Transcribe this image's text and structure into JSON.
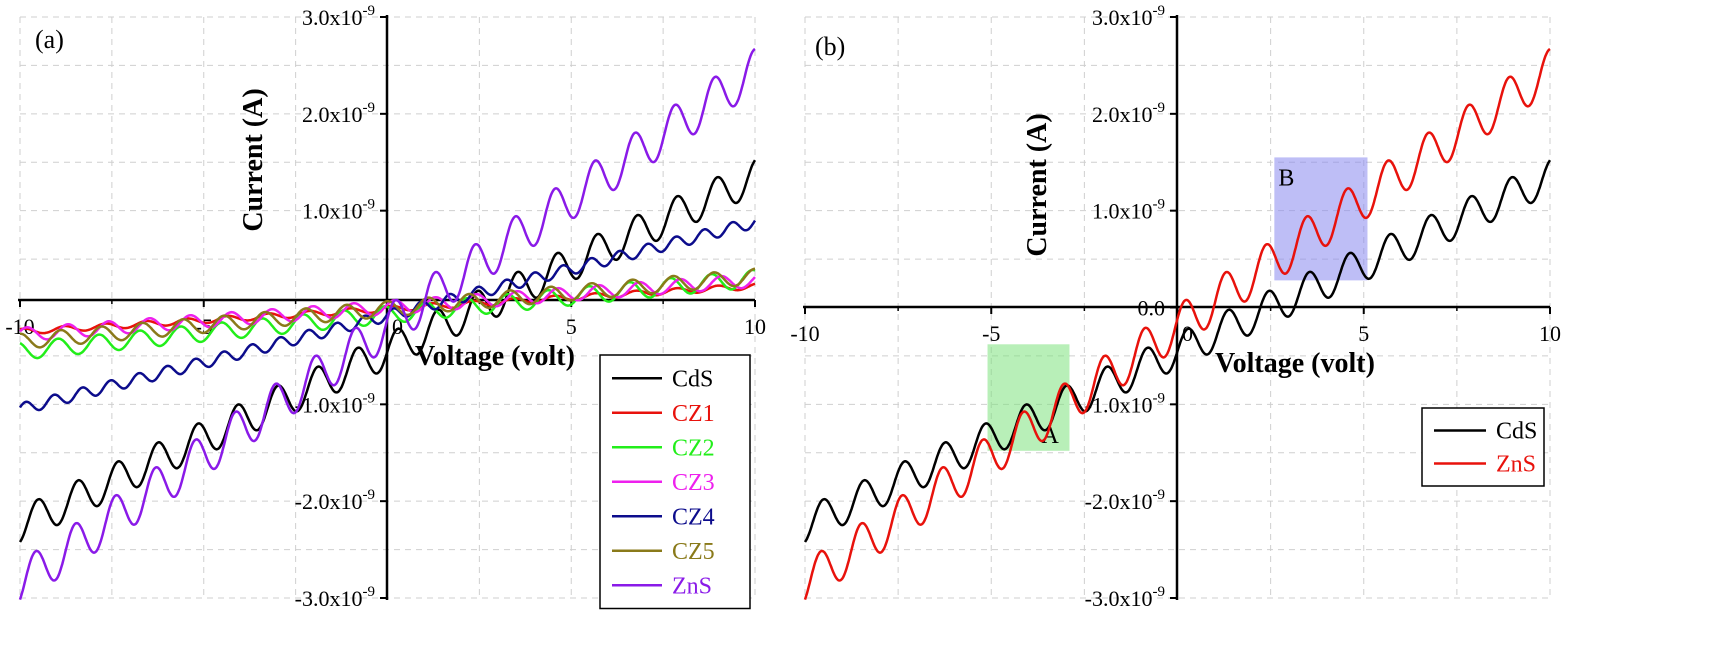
{
  "chart_data": [
    {
      "type": "line",
      "panel_label": "(a)",
      "xlabel": "Voltage (volt)",
      "ylabel": "Current (A)",
      "xlim": [
        -10,
        10
      ],
      "ylim": [
        -3e-09,
        3e-09
      ],
      "x_ticks": [
        -10,
        -5,
        0,
        5,
        10
      ],
      "x_tick_labels": [
        "-10",
        "-5",
        "0",
        "5",
        "10"
      ],
      "y_ticks": [
        -3e-09,
        -2e-09,
        -1e-09,
        1e-09,
        2e-09,
        3e-09
      ],
      "y_tick_labels": [
        {
          "base": "-3.0x10",
          "exp": "-9"
        },
        {
          "base": "-2.0x10",
          "exp": "-9"
        },
        {
          "base": "-1.0x10",
          "exp": "-9"
        },
        {
          "base": "1.0x10",
          "exp": "-9"
        },
        {
          "base": "2.0x10",
          "exp": "-9"
        },
        {
          "base": "3.0x10",
          "exp": "-9"
        }
      ],
      "grid": true,
      "legend_position": "bottom-right",
      "series": [
        {
          "name": "CdS",
          "color": "#000000",
          "start": -2.25e-09,
          "end": 1.35e-09,
          "amp": 1.8e-10,
          "freq": 0.92,
          "phase": 0.0
        },
        {
          "name": "CZ1",
          "color": "#e8120c",
          "start": -2.5e-10,
          "end": 2.2e-10,
          "amp": 3e-11,
          "freq": 0.9,
          "phase": 1.0
        },
        {
          "name": "CZ2",
          "color": "#22ee1a",
          "start": -4.5e-10,
          "end": 3e-10,
          "amp": 9e-11,
          "freq": 0.9,
          "phase": 2.0
        },
        {
          "name": "CZ3",
          "color": "#ee20ee",
          "start": -2.8e-10,
          "end": 2.8e-10,
          "amp": 7e-11,
          "freq": 0.9,
          "phase": 0.5
        },
        {
          "name": "CZ4",
          "color": "#0c0c8c",
          "start": -1.05e-09,
          "end": 8.8e-10,
          "amp": 6e-11,
          "freq": 1.3,
          "phase": 0.3
        },
        {
          "name": "CZ5",
          "color": "#8a7a1a",
          "start": -3.5e-10,
          "end": 3.2e-10,
          "amp": 8e-11,
          "freq": 0.9,
          "phase": 1.6
        },
        {
          "name": "ZnS",
          "color": "#8a1ae8",
          "start": -2.85e-09,
          "end": 2.45e-09,
          "amp": 2.2e-10,
          "freq": 0.92,
          "phase": 0.4
        }
      ]
    },
    {
      "type": "line",
      "panel_label": "(b)",
      "xlabel": "Voltage (volt)",
      "ylabel": "Current (A)",
      "xlim": [
        -10,
        10
      ],
      "ylim": [
        -3e-09,
        3e-09
      ],
      "x_ticks": [
        -10,
        -5,
        0,
        5,
        10
      ],
      "x_tick_labels": [
        "-10",
        "-5",
        "0",
        "5",
        "10"
      ],
      "y_ticks": [
        -3e-09,
        -2e-09,
        -1e-09,
        0,
        1e-09,
        2e-09,
        3e-09
      ],
      "y_tick_labels": [
        {
          "base": "-3.0x10",
          "exp": "-9"
        },
        {
          "base": "-2.0x10",
          "exp": "-9"
        },
        {
          "base": "-1.0x10",
          "exp": "-9"
        },
        {
          "base": "0.0",
          "exp": ""
        },
        {
          "base": "1.0x10",
          "exp": "-9"
        },
        {
          "base": "2.0x10",
          "exp": "-9"
        },
        {
          "base": "3.0x10",
          "exp": "-9"
        }
      ],
      "grid": true,
      "legend_position": "bottom-right",
      "highlight_boxes": [
        {
          "label": "A",
          "x0": -5.1,
          "x1": -2.9,
          "y0": -1.48e-09,
          "y1": -3.8e-10,
          "color": "#7ee27e"
        },
        {
          "label": "B",
          "x0": 2.6,
          "x1": 5.1,
          "y0": 2.8e-10,
          "y1": 1.55e-09,
          "color": "#8888ee"
        }
      ],
      "series": [
        {
          "name": "CdS",
          "color": "#000000",
          "start": -2.25e-09,
          "end": 1.35e-09,
          "amp": 1.8e-10,
          "freq": 0.92,
          "phase": 0.0
        },
        {
          "name": "ZnS",
          "color": "#e8120c",
          "start": -2.85e-09,
          "end": 2.45e-09,
          "amp": 2.2e-10,
          "freq": 0.92,
          "phase": 0.4
        }
      ]
    }
  ]
}
